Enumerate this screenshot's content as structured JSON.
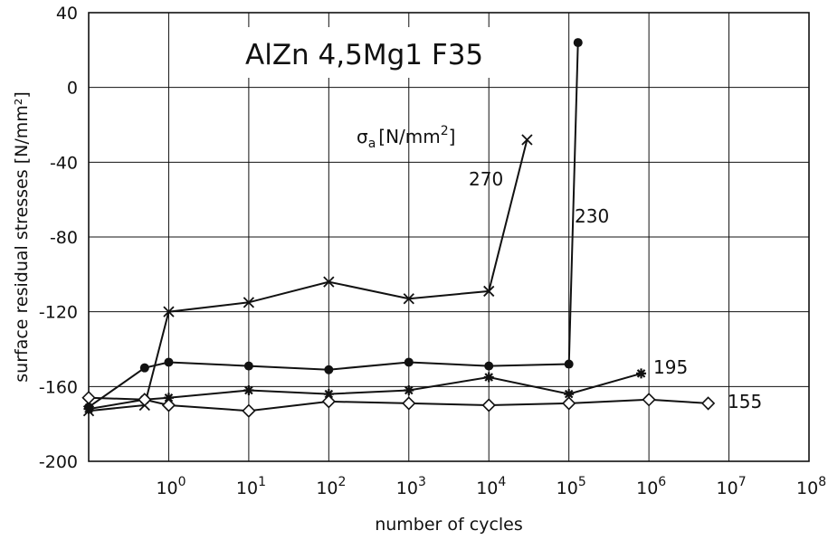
{
  "chart_data": {
    "type": "line",
    "title": "AlZn 4,5Mg1 F35",
    "xlabel": "number of cycles",
    "ylabel": "surface residual stresses [N/mm²]",
    "x_scale": "log",
    "xlim": [
      0.1,
      100000000
    ],
    "ylim": [
      -200,
      40
    ],
    "grid": true,
    "y_ticks": [
      "40",
      "0",
      "-40",
      "-80",
      "-120",
      "-160",
      "-200"
    ],
    "x_ticks": [
      {
        "base": "10",
        "exp": "0"
      },
      {
        "base": "10",
        "exp": "1"
      },
      {
        "base": "10",
        "exp": "2"
      },
      {
        "base": "10",
        "exp": "3"
      },
      {
        "base": "10",
        "exp": "4"
      },
      {
        "base": "10",
        "exp": "5"
      },
      {
        "base": "10",
        "exp": "6"
      },
      {
        "base": "10",
        "exp": "7"
      },
      {
        "base": "10",
        "exp": "8"
      }
    ],
    "legend_title": {
      "sym": "σ",
      "sub": "a",
      "rest": "[N/mm",
      "sup": "2",
      "close": "]"
    },
    "series": [
      {
        "name": "270",
        "marker": "x",
        "x": [
          0.1,
          0.5,
          1,
          10,
          100,
          1000,
          10000,
          30000
        ],
        "y": [
          -173,
          -170,
          -120,
          -115,
          -104,
          -113,
          -109,
          -28
        ]
      },
      {
        "name": "230",
        "marker": "filled-circle",
        "x": [
          0.1,
          0.5,
          1,
          10,
          100,
          1000,
          10000,
          100000,
          130000
        ],
        "y": [
          -171,
          -150,
          -147,
          -149,
          -151,
          -147,
          -149,
          -148,
          24
        ]
      },
      {
        "name": "195",
        "marker": "asterisk",
        "x": [
          0.1,
          0.5,
          1,
          10,
          100,
          1000,
          10000,
          100000,
          800000
        ],
        "y": [
          -172,
          -167,
          -166,
          -162,
          -164,
          -162,
          -155,
          -164,
          -153
        ]
      },
      {
        "name": "155",
        "marker": "open-diamond",
        "x": [
          0.1,
          0.5,
          1,
          10,
          100,
          1000,
          10000,
          100000,
          1000000,
          5500000
        ],
        "y": [
          -166,
          -167,
          -170,
          -173,
          -168,
          -169,
          -170,
          -169,
          -167,
          -169
        ]
      }
    ]
  }
}
